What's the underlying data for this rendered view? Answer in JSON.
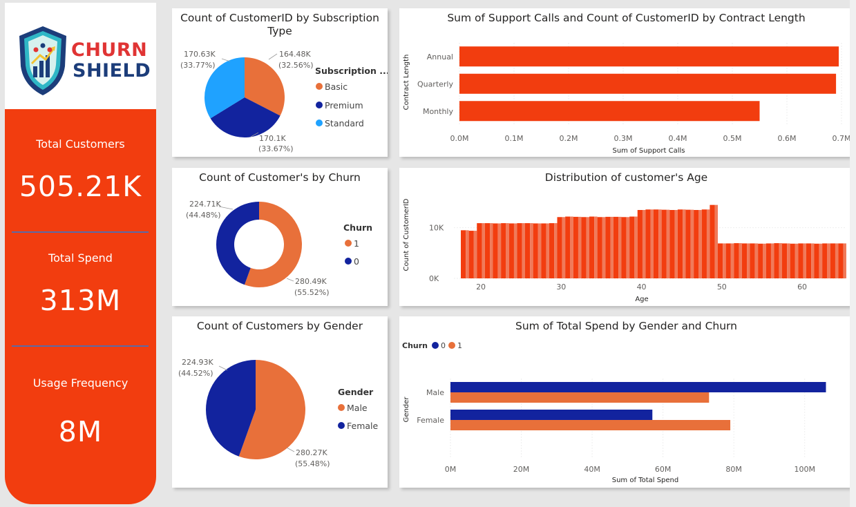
{
  "brand": {
    "line1": "CHURN",
    "line2": "SHIELD",
    "color_red": "#e03434",
    "color_navy": "#1c3d7a"
  },
  "kpis": [
    {
      "label": "Total Customers",
      "value": "505.21K"
    },
    {
      "label": "Total Spend",
      "value": "313M"
    },
    {
      "label": "Usage Frequency",
      "value": "8M"
    }
  ],
  "colors": {
    "accent": "#f23d0f",
    "orange": "#e8703a",
    "navy": "#12239e",
    "light_blue": "#1fa2ff",
    "bar_red": "#f23d0f"
  },
  "subscription_chart": {
    "title": "Count of CustomerID by Subscription Type",
    "legend_title": "Subscription ...",
    "labels": {
      "basic": "164.48K\n(32.56%)",
      "premium": "170.1K\n(33.67%)",
      "standard": "170.63K\n(33.77%)"
    },
    "chart_data": {
      "type": "pie",
      "categories": [
        "Basic",
        "Premium",
        "Standard"
      ],
      "values": [
        164.48,
        170.1,
        170.63
      ],
      "percent": [
        32.56,
        33.67,
        33.77
      ],
      "unit": "K"
    }
  },
  "contract_chart": {
    "title": "Sum of Support Calls and Count of CustomerID by Contract Length",
    "chart_data": {
      "type": "bar",
      "orientation": "horizontal",
      "categories": [
        "Annual",
        "Quarterly",
        "Monthly"
      ],
      "values": [
        0.695,
        0.69,
        0.55
      ],
      "xlabel": "Sum of Support Calls",
      "ylabel": "Contract Length",
      "xlim": [
        0,
        0.7
      ],
      "xticks": [
        "0.0M",
        "0.1M",
        "0.2M",
        "0.3M",
        "0.4M",
        "0.5M",
        "0.6M",
        "0.7M"
      ]
    }
  },
  "churn_chart": {
    "title": "Count of Customer's by Churn",
    "legend_title": "Churn",
    "chart_data": {
      "type": "pie",
      "donut": true,
      "categories": [
        "1",
        "0"
      ],
      "values": [
        280.49,
        224.71
      ],
      "percent": [
        55.52,
        44.48
      ],
      "labels": [
        "280.49K",
        "224.71K"
      ],
      "percent_labels": [
        "(55.52%)",
        "(44.48%)"
      ]
    }
  },
  "age_chart": {
    "title": "Distribution of customer's Age",
    "chart_data": {
      "type": "bar",
      "xlabel": "Age",
      "ylabel": "Count of CustomerID",
      "x": [
        18,
        19,
        20,
        21,
        22,
        23,
        24,
        25,
        26,
        27,
        28,
        29,
        30,
        31,
        32,
        33,
        34,
        35,
        36,
        37,
        38,
        39,
        40,
        41,
        42,
        43,
        44,
        45,
        46,
        47,
        48,
        49,
        50,
        51,
        52,
        53,
        54,
        55,
        56,
        57,
        58,
        59,
        60,
        61,
        62,
        63,
        64,
        65
      ],
      "values": [
        9500,
        9400,
        10900,
        10900,
        10850,
        10900,
        10850,
        10900,
        10900,
        10850,
        10850,
        10900,
        12100,
        12200,
        12150,
        12100,
        12200,
        12100,
        12150,
        12150,
        12100,
        12200,
        13500,
        13600,
        13600,
        13550,
        13500,
        13600,
        13550,
        13500,
        13600,
        14500,
        6900,
        6900,
        6950,
        6900,
        6900,
        6850,
        6900,
        6950,
        6900,
        6850,
        6900,
        6900,
        6850,
        6900,
        6900,
        6900
      ],
      "yticks": [
        "0K",
        "10K"
      ],
      "xticks": [
        "20",
        "30",
        "40",
        "50",
        "60"
      ],
      "ylim": [
        0,
        15000
      ]
    }
  },
  "gender_chart": {
    "title": "Count of Customers by Gender",
    "legend_title": "Gender",
    "chart_data": {
      "type": "pie",
      "categories": [
        "Male",
        "Female"
      ],
      "values": [
        280.27,
        224.93
      ],
      "percent": [
        55.48,
        44.52
      ],
      "labels": [
        "280.27K",
        "224.93K"
      ],
      "percent_labels": [
        "(55.48%)",
        "(44.52%)"
      ]
    }
  },
  "spend_chart": {
    "title": "Sum of Total Spend by Gender and Churn",
    "legend_title": "Churn",
    "chart_data": {
      "type": "bar",
      "orientation": "horizontal",
      "categories": [
        "Male",
        "Female"
      ],
      "series": [
        {
          "name": "0",
          "values": [
            106,
            57
          ]
        },
        {
          "name": "1",
          "values": [
            73,
            79
          ]
        }
      ],
      "xlabel": "Sum of Total Spend",
      "ylabel": "Gender",
      "xlim": [
        0,
        110
      ],
      "xticks": [
        "0M",
        "20M",
        "40M",
        "60M",
        "80M",
        "100M"
      ]
    }
  }
}
